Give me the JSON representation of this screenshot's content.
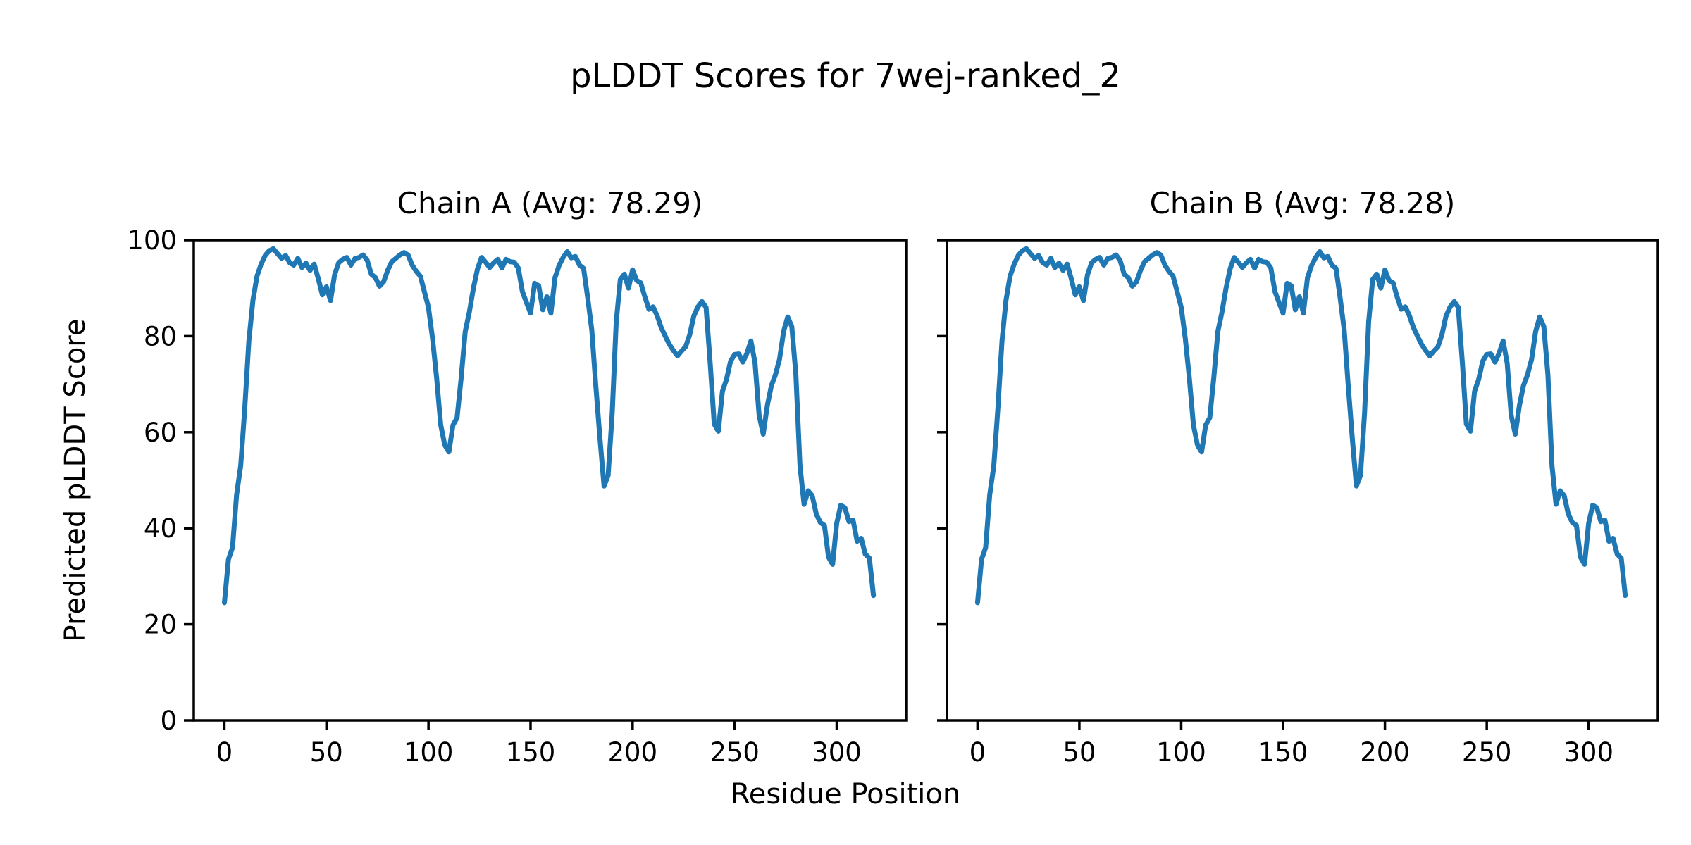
{
  "figure": {
    "suptitle": "pLDDT Scores for 7wej-ranked_2",
    "xlabel": "Residue Position",
    "ylabel": "Predicted pLDDT Score",
    "background": "#ffffff",
    "text_color": "#000000"
  },
  "chart_data": {
    "type": "line",
    "line_color": "#1f77b4",
    "axis_color": "#000000",
    "grid": false,
    "legend_position": "none",
    "xlim": [
      -15,
      334
    ],
    "ylim": [
      0,
      100
    ],
    "xticks": [
      0,
      50,
      100,
      150,
      200,
      250,
      300
    ],
    "yticks": [
      0,
      20,
      40,
      60,
      80,
      100
    ],
    "subplots": [
      {
        "title": "Chain A (Avg: 78.29)",
        "series_name": "Chain A",
        "avg": 78.29,
        "x": [
          0,
          2,
          4,
          6,
          8,
          10,
          12,
          14,
          16,
          18,
          20,
          22,
          24,
          26,
          28,
          30,
          32,
          34,
          36,
          38,
          40,
          42,
          44,
          46,
          48,
          50,
          52,
          54,
          56,
          58,
          60,
          62,
          64,
          66,
          68,
          70,
          72,
          74,
          76,
          78,
          80,
          82,
          84,
          86,
          88,
          90,
          92,
          94,
          96,
          98,
          100,
          102,
          104,
          106,
          108,
          110,
          112,
          114,
          116,
          118,
          120,
          122,
          124,
          126,
          128,
          130,
          132,
          134,
          136,
          138,
          140,
          142,
          144,
          146,
          148,
          150,
          152,
          154,
          156,
          158,
          160,
          162,
          164,
          166,
          168,
          170,
          172,
          174,
          176,
          178,
          180,
          182,
          184,
          186,
          188,
          190,
          192,
          194,
          196,
          198,
          200,
          202,
          204,
          206,
          208,
          210,
          212,
          214,
          216,
          218,
          220,
          222,
          224,
          226,
          228,
          230,
          232,
          234,
          236,
          238,
          240,
          242,
          244,
          246,
          248,
          250,
          252,
          254,
          256,
          258,
          260,
          262,
          264,
          266,
          268,
          270,
          272,
          274,
          276,
          278,
          280,
          282,
          284,
          286,
          288,
          290,
          292,
          294,
          296,
          298,
          300,
          302,
          304,
          306,
          308,
          310,
          312,
          314,
          316,
          318
        ],
        "y": [
          24.5,
          33.5,
          36,
          47,
          53,
          65,
          79,
          87.5,
          92.5,
          95,
          96.8,
          97.8,
          98.2,
          97.2,
          96.2,
          96.8,
          95.3,
          94.8,
          96.2,
          94.3,
          95.2,
          93.7,
          95,
          92,
          88.6,
          90.3,
          87.4,
          92.8,
          95.3,
          96,
          96.4,
          94.8,
          96.2,
          96.4,
          96.9,
          95.8,
          92.9,
          92.2,
          90.4,
          91.3,
          93.7,
          95.5,
          96.2,
          96.9,
          97.4,
          96.9,
          94.8,
          93.5,
          92.5,
          89.3,
          86,
          79.5,
          71.3,
          61.5,
          57.3,
          55.9,
          61.5,
          63,
          71.3,
          81,
          85,
          90,
          94,
          96.4,
          95.4,
          94.3,
          95.3,
          96,
          94.2,
          96,
          95.5,
          95.4,
          94.2,
          89.3,
          87,
          84.8,
          91,
          90.5,
          85.5,
          88.2,
          84.8,
          92.2,
          94.7,
          96.4,
          97.6,
          96.3,
          96.6,
          94.8,
          94.1,
          88,
          81.3,
          69.5,
          58.7,
          48.8,
          51,
          64,
          83,
          91.8,
          92.9,
          90,
          93.8,
          91.6,
          91.1,
          88.2,
          85.6,
          86.1,
          84.3,
          81.8,
          80,
          78.3,
          77,
          75.9,
          76.9,
          77.8,
          80.3,
          84.2,
          86.1,
          87.2,
          86,
          74.5,
          61.7,
          60.2,
          68.5,
          71,
          74.8,
          76.2,
          76.3,
          74.6,
          76.4,
          79,
          74.4,
          63.5,
          59.6,
          65.5,
          69.7,
          72,
          75.2,
          81,
          84,
          82,
          72,
          53,
          45,
          47.8,
          46.8,
          43,
          41.2,
          40.6,
          34,
          32.5,
          41,
          44.8,
          44.3,
          41.4,
          41.7,
          37.3,
          37.9,
          34.6,
          33.8,
          26
        ]
      },
      {
        "title": "Chain B (Avg: 78.28)",
        "series_name": "Chain B",
        "avg": 78.28,
        "x": [
          0,
          2,
          4,
          6,
          8,
          10,
          12,
          14,
          16,
          18,
          20,
          22,
          24,
          26,
          28,
          30,
          32,
          34,
          36,
          38,
          40,
          42,
          44,
          46,
          48,
          50,
          52,
          54,
          56,
          58,
          60,
          62,
          64,
          66,
          68,
          70,
          72,
          74,
          76,
          78,
          80,
          82,
          84,
          86,
          88,
          90,
          92,
          94,
          96,
          98,
          100,
          102,
          104,
          106,
          108,
          110,
          112,
          114,
          116,
          118,
          120,
          122,
          124,
          126,
          128,
          130,
          132,
          134,
          136,
          138,
          140,
          142,
          144,
          146,
          148,
          150,
          152,
          154,
          156,
          158,
          160,
          162,
          164,
          166,
          168,
          170,
          172,
          174,
          176,
          178,
          180,
          182,
          184,
          186,
          188,
          190,
          192,
          194,
          196,
          198,
          200,
          202,
          204,
          206,
          208,
          210,
          212,
          214,
          216,
          218,
          220,
          222,
          224,
          226,
          228,
          230,
          232,
          234,
          236,
          238,
          240,
          242,
          244,
          246,
          248,
          250,
          252,
          254,
          256,
          258,
          260,
          262,
          264,
          266,
          268,
          270,
          272,
          274,
          276,
          278,
          280,
          282,
          284,
          286,
          288,
          290,
          292,
          294,
          296,
          298,
          300,
          302,
          304,
          306,
          308,
          310,
          312,
          314,
          316,
          318
        ],
        "y": [
          24.5,
          33.5,
          36,
          47,
          53,
          65,
          79,
          87.5,
          92.5,
          95,
          96.8,
          97.8,
          98.2,
          97.2,
          96.2,
          96.8,
          95.3,
          94.8,
          96.2,
          94.3,
          95.2,
          93.7,
          95,
          92,
          88.6,
          90.3,
          87.4,
          92.8,
          95.3,
          96,
          96.4,
          94.8,
          96.2,
          96.4,
          96.9,
          95.8,
          92.9,
          92.2,
          90.4,
          91.3,
          93.7,
          95.5,
          96.2,
          96.9,
          97.4,
          96.9,
          94.8,
          93.5,
          92.5,
          89.3,
          86,
          79.5,
          71.3,
          61.5,
          57.3,
          55.9,
          61.5,
          63,
          71.3,
          81,
          85,
          90,
          94,
          96.4,
          95.4,
          94.3,
          95.3,
          96,
          94.2,
          96,
          95.5,
          95.4,
          94.2,
          89.3,
          87,
          84.8,
          91,
          90.5,
          85.5,
          88.2,
          84.8,
          92.2,
          94.7,
          96.4,
          97.6,
          96.3,
          96.6,
          94.8,
          94.1,
          88,
          81.3,
          69.5,
          58.7,
          48.8,
          51,
          64,
          83,
          91.8,
          92.9,
          90,
          93.8,
          91.6,
          91.1,
          88.2,
          85.6,
          86.1,
          84.3,
          81.8,
          80,
          78.3,
          77,
          75.9,
          76.9,
          77.8,
          80.3,
          84.2,
          86.1,
          87.2,
          86,
          74.5,
          61.7,
          60.2,
          68.5,
          71,
          74.8,
          76.2,
          76.3,
          74.6,
          76.4,
          79,
          74.4,
          63.5,
          59.6,
          65.5,
          69.7,
          72,
          75.2,
          81,
          84,
          82,
          72,
          53,
          45,
          47.8,
          46.8,
          43,
          41.2,
          40.6,
          34,
          32.5,
          41,
          44.8,
          44.3,
          41.4,
          41.7,
          37.3,
          37.9,
          34.6,
          33.8,
          26
        ]
      }
    ]
  }
}
